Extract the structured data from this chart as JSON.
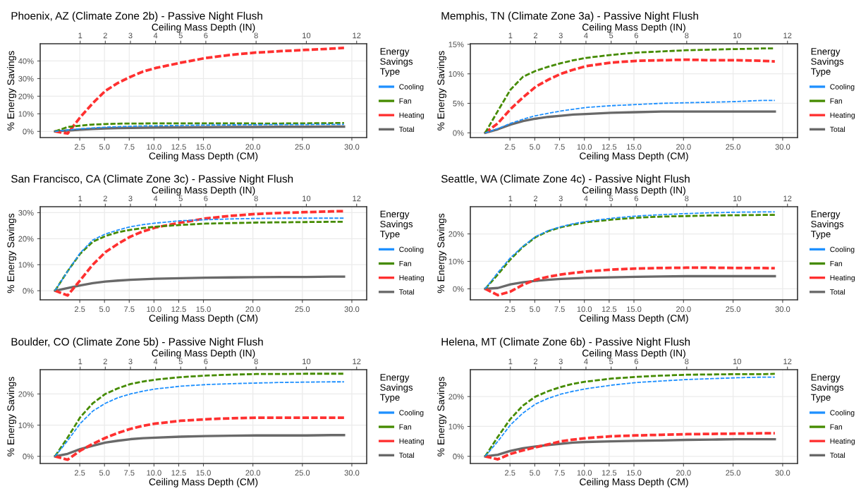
{
  "chart_data": [
    {
      "type": "line",
      "title": "Phoenix, AZ (Climate Zone 2b) - Passive Night Flush",
      "xlabel": "Ceiling Mass Depth (CM)",
      "x2label": "Ceiling Mass Depth (IN)",
      "ylabel": "% Energy Savings",
      "legend_title": "Energy\nSavings\nType",
      "legend": "right",
      "grid": true,
      "x": [
        0,
        1.27,
        2.54,
        3.81,
        5.08,
        6.35,
        7.62,
        8.89,
        10.16,
        12.7,
        15.24,
        17.78,
        20.32,
        22.86,
        25.4,
        27.94,
        29.21
      ],
      "xlim": [
        -1.5,
        31.5
      ],
      "xticks": [
        {
          "value": 2.5,
          "label": "2.5"
        },
        {
          "value": 5,
          "label": "5.0"
        },
        {
          "value": 7.5,
          "label": "7.5"
        },
        {
          "value": 10,
          "label": "10.0"
        },
        {
          "value": 12.5,
          "label": "12.5"
        },
        {
          "value": 15,
          "label": "15.0"
        },
        {
          "value": 20,
          "label": "20.0"
        },
        {
          "value": 25,
          "label": "25.0"
        },
        {
          "value": 30,
          "label": "30.0"
        }
      ],
      "x2lim": [
        -0.59,
        12.4
      ],
      "x2ticks": [
        1,
        2,
        3,
        4,
        5,
        6,
        8,
        10,
        12
      ],
      "ylim": [
        -3.5,
        49.8
      ],
      "yticks": [
        {
          "value": 0,
          "label": "0%"
        },
        {
          "value": 10,
          "label": "10%"
        },
        {
          "value": 20,
          "label": "20%"
        },
        {
          "value": 30,
          "label": "30%"
        },
        {
          "value": 40,
          "label": "40%"
        }
      ],
      "series": [
        {
          "name": "Cooling",
          "color": "#1e90ff",
          "line_style": "dashed",
          "values": [
            0,
            0.8,
            1.5,
            2.0,
            2.4,
            2.7,
            2.9,
            3.1,
            3.2,
            3.4,
            3.6,
            3.7,
            3.8,
            3.9,
            3.9,
            4.0,
            4.0
          ]
        },
        {
          "name": "Fan",
          "color": "#458b00",
          "line_style": "dashed",
          "values": [
            0,
            2.5,
            3.3,
            3.9,
            4.2,
            4.4,
            4.5,
            4.5,
            4.6,
            4.6,
            4.6,
            4.6,
            4.5,
            4.5,
            4.6,
            4.7,
            4.8
          ]
        },
        {
          "name": "Heating",
          "color": "#ff3030",
          "line_style": "dashed",
          "values": [
            0,
            -1.2,
            8,
            16,
            23,
            27.5,
            31,
            34,
            36,
            39,
            41.7,
            43.5,
            44.8,
            45.6,
            46.3,
            47,
            47.4
          ]
        },
        {
          "name": "Total",
          "color": "#696969",
          "line_style": "solid",
          "values": [
            0,
            0.5,
            1.0,
            1.4,
            1.7,
            1.9,
            2.0,
            2.1,
            2.2,
            2.3,
            2.4,
            2.5,
            2.5,
            2.6,
            2.6,
            2.7,
            2.7
          ]
        }
      ]
    },
    {
      "type": "line",
      "title": "Memphis, TN (Climate Zone 3a) - Passive Night Flush",
      "xlabel": "Ceiling Mass Depth (CM)",
      "x2label": "Ceiling Mass Depth (IN)",
      "ylabel": "% Energy Savings",
      "legend_title": "Energy\nSavings\nType",
      "legend": "right",
      "grid": true,
      "x": [
        0,
        1.27,
        2.54,
        3.81,
        5.08,
        6.35,
        7.62,
        8.89,
        10.16,
        12.7,
        15.24,
        17.78,
        20.32,
        22.86,
        25.4,
        27.94,
        29.21
      ],
      "xlim": [
        -1.5,
        31.5
      ],
      "xticks": [
        {
          "value": 2.5,
          "label": "2.5"
        },
        {
          "value": 5,
          "label": "5.0"
        },
        {
          "value": 7.5,
          "label": "7.5"
        },
        {
          "value": 10,
          "label": "10.0"
        },
        {
          "value": 12.5,
          "label": "12.5"
        },
        {
          "value": 15,
          "label": "15.0"
        },
        {
          "value": 20,
          "label": "20.0"
        },
        {
          "value": 25,
          "label": "25.0"
        },
        {
          "value": 30,
          "label": "30.0"
        }
      ],
      "x2lim": [
        -0.59,
        12.4
      ],
      "x2ticks": [
        1,
        2,
        3,
        4,
        5,
        6,
        8,
        10,
        12
      ],
      "ylim": [
        -0.8,
        15.1
      ],
      "yticks": [
        {
          "value": 0,
          "label": "0%"
        },
        {
          "value": 5,
          "label": "5%"
        },
        {
          "value": 10,
          "label": "10%"
        },
        {
          "value": 15,
          "label": "15%"
        }
      ],
      "series": [
        {
          "name": "Cooling",
          "color": "#1e90ff",
          "line_style": "dashed",
          "values": [
            0,
            0.7,
            1.6,
            2.3,
            2.9,
            3.3,
            3.7,
            4.0,
            4.3,
            4.6,
            4.8,
            5.0,
            5.1,
            5.2,
            5.3,
            5.5,
            5.5
          ]
        },
        {
          "name": "Fan",
          "color": "#458b00",
          "line_style": "dashed",
          "values": [
            0,
            3.7,
            7.3,
            9.5,
            10.5,
            11.2,
            11.8,
            12.3,
            12.7,
            13.2,
            13.6,
            13.8,
            14.0,
            14.1,
            14.2,
            14.3,
            14.3
          ]
        },
        {
          "name": "Heating",
          "color": "#ff3030",
          "line_style": "dashed",
          "values": [
            0,
            1.6,
            4.0,
            6.0,
            7.8,
            9.0,
            10.0,
            10.7,
            11.3,
            11.9,
            12.2,
            12.3,
            12.4,
            12.3,
            12.3,
            12.2,
            12.1
          ]
        },
        {
          "name": "Total",
          "color": "#696969",
          "line_style": "solid",
          "values": [
            0,
            0.6,
            1.4,
            2.0,
            2.4,
            2.7,
            2.9,
            3.1,
            3.2,
            3.4,
            3.5,
            3.6,
            3.6,
            3.6,
            3.6,
            3.6,
            3.6
          ]
        }
      ]
    },
    {
      "type": "line",
      "title": "San Francisco, CA (Climate Zone 3c) - Passive Night Flush",
      "xlabel": "Ceiling Mass Depth (CM)",
      "x2label": "Ceiling Mass Depth (IN)",
      "ylabel": "% Energy Savings",
      "legend_title": "Energy\nSavings\nType",
      "legend": "right",
      "grid": true,
      "x": [
        0,
        1.27,
        2.54,
        3.81,
        5.08,
        6.35,
        7.62,
        8.89,
        10.16,
        12.7,
        15.24,
        17.78,
        20.32,
        22.86,
        25.4,
        27.94,
        29.21
      ],
      "xlim": [
        -1.5,
        31.5
      ],
      "xticks": [
        {
          "value": 2.5,
          "label": "2.5"
        },
        {
          "value": 5,
          "label": "5.0"
        },
        {
          "value": 7.5,
          "label": "7.5"
        },
        {
          "value": 10,
          "label": "10.0"
        },
        {
          "value": 12.5,
          "label": "12.5"
        },
        {
          "value": 15,
          "label": "15.0"
        },
        {
          "value": 20,
          "label": "20.0"
        },
        {
          "value": 25,
          "label": "25.0"
        },
        {
          "value": 30,
          "label": "30.0"
        }
      ],
      "x2lim": [
        -0.59,
        12.4
      ],
      "x2ticks": [
        1,
        2,
        3,
        4,
        5,
        6,
        8,
        10,
        12
      ],
      "ylim": [
        -3.5,
        32.3
      ],
      "yticks": [
        {
          "value": 0,
          "label": "0%"
        },
        {
          "value": 10,
          "label": "10%"
        },
        {
          "value": 20,
          "label": "20%"
        },
        {
          "value": 30,
          "label": "30%"
        }
      ],
      "series": [
        {
          "name": "Cooling",
          "color": "#1e90ff",
          "line_style": "dashed",
          "values": [
            0,
            7.5,
            14.5,
            19.5,
            21.8,
            23.3,
            24.6,
            25.4,
            26.0,
            26.9,
            27.3,
            27.6,
            27.8,
            27.9,
            27.9,
            27.9,
            27.9
          ]
        },
        {
          "name": "Fan",
          "color": "#458b00",
          "line_style": "dashed",
          "values": [
            0,
            7.5,
            14.2,
            18.8,
            21.0,
            22.5,
            23.4,
            24.1,
            24.6,
            25.3,
            25.8,
            26.0,
            26.2,
            26.3,
            26.4,
            26.5,
            26.5
          ]
        },
        {
          "name": "Heating",
          "color": "#ff3030",
          "line_style": "dashed",
          "values": [
            0,
            -1.8,
            4.0,
            10.0,
            14.8,
            18.0,
            20.8,
            22.8,
            24.3,
            26.2,
            27.8,
            28.8,
            29.5,
            29.9,
            30.2,
            30.5,
            30.6
          ]
        },
        {
          "name": "Total",
          "color": "#696969",
          "line_style": "solid",
          "values": [
            0,
            1.0,
            2.0,
            2.9,
            3.5,
            3.9,
            4.2,
            4.4,
            4.6,
            4.8,
            5.0,
            5.1,
            5.2,
            5.3,
            5.3,
            5.4,
            5.4
          ]
        }
      ]
    },
    {
      "type": "line",
      "title": "Seattle, WA (Climate Zone 4c) - Passive Night Flush",
      "xlabel": "Ceiling Mass Depth (CM)",
      "x2label": "Ceiling Mass Depth (IN)",
      "ylabel": "% Energy Savings",
      "legend_title": "Energy\nSavings\nType",
      "legend": "right",
      "grid": true,
      "x": [
        0,
        1.27,
        2.54,
        3.81,
        5.08,
        6.35,
        7.62,
        8.89,
        10.16,
        12.7,
        15.24,
        17.78,
        20.32,
        22.86,
        25.4,
        27.94,
        29.21
      ],
      "xlim": [
        -1.5,
        31.5
      ],
      "xticks": [
        {
          "value": 2.5,
          "label": "2.5"
        },
        {
          "value": 5,
          "label": "5.0"
        },
        {
          "value": 7.5,
          "label": "7.5"
        },
        {
          "value": 10,
          "label": "10.0"
        },
        {
          "value": 12.5,
          "label": "12.5"
        },
        {
          "value": 15,
          "label": "15.0"
        },
        {
          "value": 20,
          "label": "20.0"
        },
        {
          "value": 25,
          "label": "25.0"
        },
        {
          "value": 30,
          "label": "30.0"
        }
      ],
      "x2lim": [
        -0.59,
        12.4
      ],
      "x2ticks": [
        1,
        2,
        3,
        4,
        5,
        6,
        8,
        10,
        12
      ],
      "ylim": [
        -4.0,
        29.9
      ],
      "yticks": [
        {
          "value": 0,
          "label": "0%"
        },
        {
          "value": 10,
          "label": "10%"
        },
        {
          "value": 20,
          "label": "20%"
        }
      ],
      "series": [
        {
          "name": "Cooling",
          "color": "#1e90ff",
          "line_style": "dashed",
          "values": [
            0,
            5.9,
            11.3,
            15.5,
            19.0,
            21.2,
            22.6,
            23.7,
            24.5,
            25.7,
            26.5,
            27.0,
            27.4,
            27.7,
            27.9,
            28.0,
            28.0
          ]
        },
        {
          "name": "Fan",
          "color": "#458b00",
          "line_style": "dashed",
          "values": [
            0,
            5.2,
            10.7,
            15.3,
            18.8,
            21.0,
            22.4,
            23.4,
            24.2,
            25.2,
            25.9,
            26.3,
            26.5,
            26.7,
            26.8,
            26.9,
            26.9
          ]
        },
        {
          "name": "Heating",
          "color": "#ff3030",
          "line_style": "dashed",
          "values": [
            0,
            -2.3,
            -1.0,
            1.5,
            3.3,
            4.4,
            5.2,
            5.8,
            6.3,
            7.0,
            7.4,
            7.6,
            7.7,
            7.7,
            7.6,
            7.6,
            7.5
          ]
        },
        {
          "name": "Total",
          "color": "#696969",
          "line_style": "solid",
          "values": [
            0,
            0.3,
            1.6,
            2.4,
            2.9,
            3.3,
            3.6,
            3.8,
            4.0,
            4.2,
            4.4,
            4.5,
            4.6,
            4.6,
            4.6,
            4.6,
            4.6
          ]
        }
      ]
    },
    {
      "type": "line",
      "title": "Boulder, CO (Climate Zone 5b) - Passive Night Flush",
      "xlabel": "Ceiling Mass Depth (CM)",
      "x2label": "Ceiling Mass Depth (IN)",
      "ylabel": "% Energy Savings",
      "legend_title": "Energy\nSavings\nType",
      "legend": "right",
      "grid": true,
      "x": [
        0,
        1.27,
        2.54,
        3.81,
        5.08,
        6.35,
        7.62,
        8.89,
        10.16,
        12.7,
        15.24,
        17.78,
        20.32,
        22.86,
        25.4,
        27.94,
        29.21
      ],
      "xlim": [
        -1.5,
        31.5
      ],
      "xticks": [
        {
          "value": 2.5,
          "label": "2.5"
        },
        {
          "value": 5,
          "label": "5.0"
        },
        {
          "value": 7.5,
          "label": "7.5"
        },
        {
          "value": 10,
          "label": "10.0"
        },
        {
          "value": 12.5,
          "label": "12.5"
        },
        {
          "value": 15,
          "label": "15.0"
        },
        {
          "value": 20,
          "label": "20.0"
        },
        {
          "value": 25,
          "label": "25.0"
        },
        {
          "value": 30,
          "label": "30.0"
        }
      ],
      "x2lim": [
        -0.59,
        12.4
      ],
      "x2ticks": [
        1,
        2,
        3,
        4,
        5,
        6,
        8,
        10,
        12
      ],
      "ylim": [
        -2.3,
        27.8
      ],
      "yticks": [
        {
          "value": 0,
          "label": "0%"
        },
        {
          "value": 10,
          "label": "10%"
        },
        {
          "value": 20,
          "label": "20%"
        }
      ],
      "series": [
        {
          "name": "Cooling",
          "color": "#1e90ff",
          "line_style": "dashed",
          "values": [
            0,
            5.0,
            10.5,
            14.5,
            17.0,
            18.8,
            20.0,
            20.9,
            21.6,
            22.5,
            23.0,
            23.3,
            23.5,
            23.7,
            23.8,
            23.9,
            23.9
          ]
        },
        {
          "name": "Fan",
          "color": "#458b00",
          "line_style": "dashed",
          "values": [
            0,
            6.0,
            12.5,
            17.0,
            20.0,
            21.8,
            23.2,
            24.0,
            24.6,
            25.4,
            25.9,
            26.2,
            26.4,
            26.4,
            26.5,
            26.5,
            26.5
          ]
        },
        {
          "name": "Heating",
          "color": "#ff3030",
          "line_style": "dashed",
          "values": [
            0,
            -1.1,
            1.8,
            4.0,
            5.9,
            7.5,
            8.8,
            9.8,
            10.5,
            11.4,
            11.9,
            12.2,
            12.4,
            12.4,
            12.4,
            12.4,
            12.4
          ]
        },
        {
          "name": "Total",
          "color": "#696969",
          "line_style": "solid",
          "values": [
            0,
            0.8,
            2.3,
            3.4,
            4.4,
            5.0,
            5.5,
            5.8,
            6.0,
            6.3,
            6.5,
            6.6,
            6.7,
            6.7,
            6.7,
            6.8,
            6.8
          ]
        }
      ]
    },
    {
      "type": "line",
      "title": "Helena, MT (Climate Zone 6b) - Passive Night Flush",
      "xlabel": "Ceiling Mass Depth (CM)",
      "x2label": "Ceiling Mass Depth (IN)",
      "ylabel": "% Energy Savings",
      "legend_title": "Energy\nSavings\nType",
      "legend": "right",
      "grid": true,
      "x": [
        0,
        1.27,
        2.54,
        3.81,
        5.08,
        6.35,
        7.62,
        8.89,
        10.16,
        12.7,
        15.24,
        17.78,
        20.32,
        22.86,
        25.4,
        27.94,
        29.21
      ],
      "xlim": [
        -1.5,
        31.5
      ],
      "xticks": [
        {
          "value": 2.5,
          "label": "2.5"
        },
        {
          "value": 5,
          "label": "5.0"
        },
        {
          "value": 7.5,
          "label": "7.5"
        },
        {
          "value": 10,
          "label": "10.0"
        },
        {
          "value": 12.5,
          "label": "12.5"
        },
        {
          "value": 15,
          "label": "15.0"
        },
        {
          "value": 20,
          "label": "20.0"
        },
        {
          "value": 25,
          "label": "25.0"
        },
        {
          "value": 30,
          "label": "30.0"
        }
      ],
      "x2lim": [
        -0.59,
        12.4
      ],
      "x2ticks": [
        1,
        2,
        3,
        4,
        5,
        6,
        8,
        10,
        12
      ],
      "ylim": [
        -2.4,
        29.0
      ],
      "yticks": [
        {
          "value": 0,
          "label": "0%"
        },
        {
          "value": 10,
          "label": "10%"
        },
        {
          "value": 20,
          "label": "20%"
        }
      ],
      "series": [
        {
          "name": "Cooling",
          "color": "#1e90ff",
          "line_style": "dashed",
          "values": [
            0,
            5.0,
            10.5,
            14.5,
            17.5,
            19.4,
            20.8,
            21.8,
            22.6,
            23.8,
            24.7,
            25.2,
            25.7,
            26.0,
            26.3,
            26.5,
            26.5
          ]
        },
        {
          "name": "Fan",
          "color": "#458b00",
          "line_style": "dashed",
          "values": [
            0,
            6.5,
            12.5,
            17.0,
            20.0,
            21.8,
            23.2,
            24.3,
            25.0,
            26.0,
            26.6,
            27.0,
            27.3,
            27.4,
            27.5,
            27.5,
            27.6
          ]
        },
        {
          "name": "Heating",
          "color": "#ff3030",
          "line_style": "dashed",
          "values": [
            0,
            -1.0,
            0.8,
            2.0,
            3.0,
            4.0,
            5.0,
            5.6,
            6.1,
            6.7,
            7.0,
            7.2,
            7.4,
            7.5,
            7.6,
            7.7,
            7.7
          ]
        },
        {
          "name": "Total",
          "color": "#696969",
          "line_style": "solid",
          "values": [
            0,
            0.5,
            1.8,
            2.7,
            3.3,
            3.8,
            4.2,
            4.6,
            4.8,
            5.0,
            5.2,
            5.3,
            5.5,
            5.6,
            5.7,
            5.7,
            5.7
          ]
        }
      ]
    }
  ]
}
